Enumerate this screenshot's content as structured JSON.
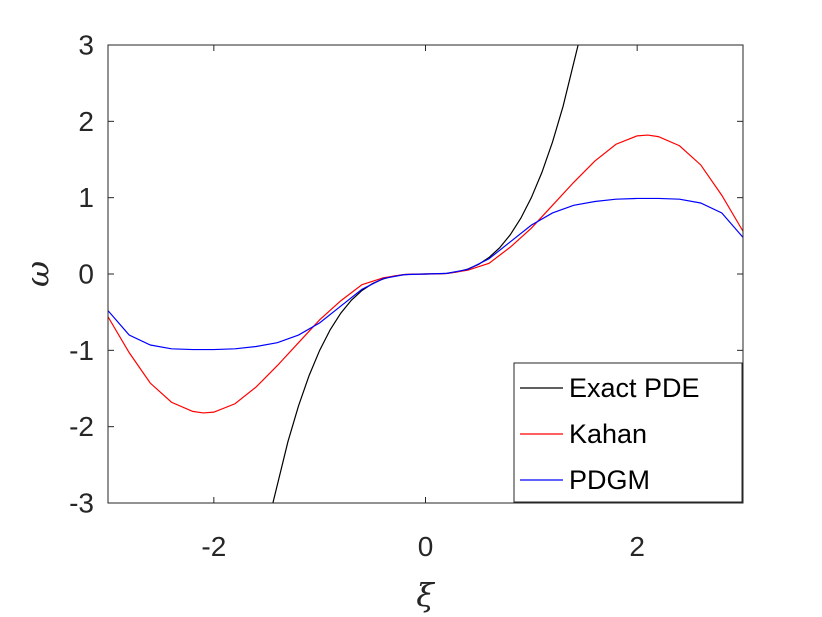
{
  "chart_data": {
    "type": "line",
    "xlabel": "ξ",
    "ylabel": "ω",
    "xlim": [
      -3,
      3
    ],
    "ylim": [
      -3,
      3
    ],
    "xticks": [
      -2,
      0,
      2
    ],
    "yticks": [
      -3,
      -2,
      -1,
      0,
      1,
      2,
      3
    ],
    "xtick_labels": [
      "-2",
      "0",
      "2"
    ],
    "ytick_labels": [
      "-3",
      "-2",
      "-1",
      "0",
      "1",
      "2",
      "3"
    ],
    "grid": false,
    "legend_position": "bottom-right",
    "series": [
      {
        "name": "Exact PDE",
        "color": "#000000",
        "x": [
          -1.442,
          -1.3,
          -1.2,
          -1.1,
          -1.0,
          -0.9,
          -0.8,
          -0.7,
          -0.6,
          -0.5,
          -0.4,
          -0.3,
          -0.2,
          -0.1,
          0.0,
          0.1,
          0.2,
          0.3,
          0.4,
          0.5,
          0.6,
          0.7,
          0.8,
          0.9,
          1.0,
          1.1,
          1.2,
          1.3,
          1.442
        ],
        "y": [
          -3.0,
          -2.197,
          -1.728,
          -1.331,
          -1.0,
          -0.729,
          -0.512,
          -0.343,
          -0.216,
          -0.125,
          -0.064,
          -0.027,
          -0.008,
          -0.001,
          0.0,
          0.001,
          0.008,
          0.027,
          0.064,
          0.125,
          0.216,
          0.343,
          0.512,
          0.729,
          1.0,
          1.331,
          1.728,
          2.197,
          3.0
        ]
      },
      {
        "name": "Kahan",
        "color": "#ff0000",
        "x": [
          -3.0,
          -2.8,
          -2.6,
          -2.4,
          -2.2,
          -2.1,
          -2.0,
          -1.8,
          -1.6,
          -1.4,
          -1.2,
          -1.0,
          -0.8,
          -0.6,
          -0.4,
          -0.2,
          0.0,
          0.2,
          0.4,
          0.6,
          0.8,
          1.0,
          1.2,
          1.4,
          1.6,
          1.8,
          2.0,
          2.1,
          2.2,
          2.4,
          2.6,
          2.8,
          3.0
        ],
        "y": [
          -0.56,
          -1.03,
          -1.43,
          -1.68,
          -1.8,
          -1.82,
          -1.81,
          -1.7,
          -1.48,
          -1.2,
          -0.9,
          -0.6,
          -0.35,
          -0.14,
          -0.05,
          -0.007,
          0.0,
          0.007,
          0.05,
          0.14,
          0.35,
          0.6,
          0.9,
          1.2,
          1.48,
          1.7,
          1.81,
          1.82,
          1.8,
          1.68,
          1.43,
          1.03,
          0.56
        ]
      },
      {
        "name": "PDGM",
        "color": "#0000ff",
        "x": [
          -3.0,
          -2.8,
          -2.6,
          -2.4,
          -2.2,
          -2.0,
          -1.8,
          -1.6,
          -1.4,
          -1.2,
          -1.0,
          -0.8,
          -0.6,
          -0.4,
          -0.2,
          0.0,
          0.2,
          0.4,
          0.6,
          0.8,
          1.0,
          1.2,
          1.4,
          1.6,
          1.8,
          2.0,
          2.2,
          2.4,
          2.6,
          2.8,
          3.0
        ],
        "y": [
          -0.48,
          -0.8,
          -0.93,
          -0.98,
          -0.99,
          -0.99,
          -0.98,
          -0.95,
          -0.9,
          -0.8,
          -0.64,
          -0.42,
          -0.2,
          -0.06,
          -0.008,
          0.0,
          0.008,
          0.06,
          0.2,
          0.42,
          0.64,
          0.8,
          0.9,
          0.95,
          0.98,
          0.99,
          0.99,
          0.98,
          0.93,
          0.8,
          0.48
        ]
      }
    ]
  }
}
